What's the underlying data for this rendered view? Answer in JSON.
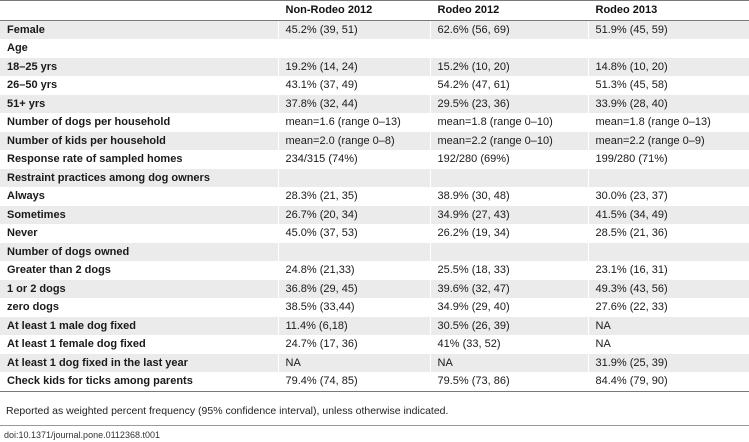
{
  "table": {
    "headers": [
      "",
      "Non-Rodeo 2012",
      "Rodeo 2012",
      "Rodeo 2013"
    ],
    "rows": [
      [
        "Female",
        "45.2% (39, 51)",
        "62.6% (56, 69)",
        "51.9% (45, 59)"
      ],
      [
        "Age",
        "",
        "",
        ""
      ],
      [
        "18–25 yrs",
        "19.2% (14, 24)",
        "15.2% (10, 20)",
        "14.8% (10, 20)"
      ],
      [
        "26–50 yrs",
        "43.1% (37, 49)",
        "54.2% (47, 61)",
        "51.3% (45, 58)"
      ],
      [
        "51+ yrs",
        "37.8% (32, 44)",
        "29.5% (23, 36)",
        "33.9% (28, 40)"
      ],
      [
        "Number of dogs per household",
        "mean=1.6 (range 0–13)",
        "mean=1.8 (range 0–10)",
        "mean=1.8 (range 0–13)"
      ],
      [
        "Number of kids per household",
        "mean=2.0 (range 0–8)",
        "mean=2.2 (range 0–10)",
        "mean=2.2 (range 0–9)"
      ],
      [
        "Response rate of sampled homes",
        "234/315 (74%)",
        "192/280 (69%)",
        "199/280 (71%)"
      ],
      [
        "Restraint practices among dog owners",
        "",
        "",
        ""
      ],
      [
        "Always",
        "28.3% (21, 35)",
        "38.9% (30, 48)",
        "30.0% (23, 37)"
      ],
      [
        "Sometimes",
        "26.7% (20, 34)",
        "34.9% (27, 43)",
        "41.5% (34, 49)"
      ],
      [
        "Never",
        "45.0% (37, 53)",
        "26.2% (19, 34)",
        "28.5% (21, 36)"
      ],
      [
        "Number of dogs owned",
        "",
        "",
        ""
      ],
      [
        "Greater than 2 dogs",
        "24.8% (21,33)",
        "25.5% (18, 33)",
        "23.1% (16, 31)"
      ],
      [
        "1 or 2 dogs",
        "36.8% (29, 45)",
        "39.6% (32, 47)",
        "49.3% (43, 56)"
      ],
      [
        "zero dogs",
        "38.5% (33,44)",
        "34.9% (29, 40)",
        "27.6% (22, 33)"
      ],
      [
        "At least 1 male dog fixed",
        "11.4% (6,18)",
        "30.5% (26, 39)",
        "NA"
      ],
      [
        "At least 1 female dog fixed",
        "24.7% (17, 36)",
        "41% (33, 52)",
        "NA"
      ],
      [
        "At least 1 dog fixed in the last year",
        "NA",
        "NA",
        "31.9% (25, 39)"
      ],
      [
        "Check kids for ticks among parents",
        "79.4% (74, 85)",
        "79.5% (73, 86)",
        "84.4% (79, 90)"
      ]
    ]
  },
  "footnote": "Reported as weighted percent frequency (95% confidence interval), unless otherwise indicated.",
  "doi": "doi:10.1371/journal.pone.0112368.t001",
  "colors": {
    "stripe": "#ebebeb",
    "rule": "#7a7a7a"
  }
}
